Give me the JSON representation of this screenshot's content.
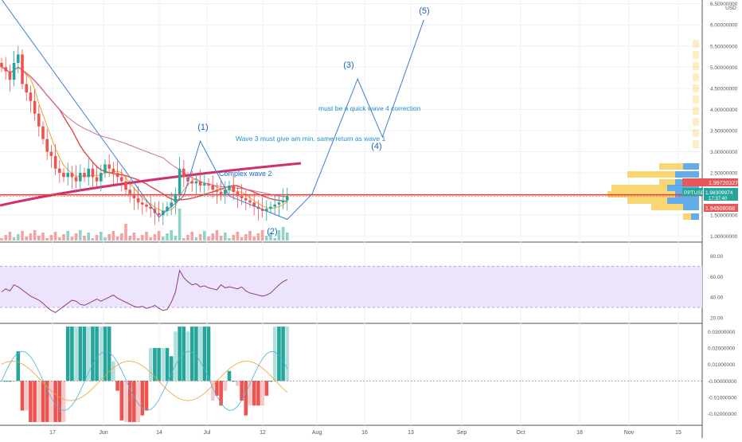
{
  "chart_data": {
    "type": "candlestick",
    "instrument": "PPTUSD",
    "currency": "USD",
    "price_axis": {
      "ticks": [
        "6.50000000",
        "6.00000000",
        "5.50000000",
        "5.00000000",
        "4.50000000",
        "4.00000000",
        "3.50000000",
        "3.00000000",
        "2.50000000",
        "2.00000000",
        "1.50000000",
        "1.00000000"
      ],
      "range": [
        0.9,
        6.55
      ]
    },
    "time_axis": {
      "ticks": [
        "17",
        "Jun",
        "14",
        "Jul",
        "12",
        "Aug",
        "16",
        "13",
        "Sep",
        "Oct",
        "18",
        "Nov",
        "15"
      ]
    },
    "price_labels": {
      "upper": "1.99720327",
      "current": "1.98309974",
      "countdown": "17:37:40",
      "lower": "1.94508068"
    },
    "annotations": {
      "wave_1": "(1)",
      "wave_2": "(2)",
      "wave_3": "(3)",
      "wave_4": "(4)",
      "wave_5": "(5)",
      "complex_wave_2": "Complex wave 2",
      "wave_3_note": "Wave 3 must give am min. same return as wave 1",
      "wave_4_note": "must be a quick wave 4 correction"
    },
    "projection_path": [
      {
        "x": 0,
        "y": 6.6
      },
      {
        "x": 38,
        "y": 1.45
      },
      {
        "x": 44,
        "y": 1.95
      },
      {
        "x": 48,
        "y": 3.25
      },
      {
        "x": 55,
        "y": 1.95
      },
      {
        "x": 69,
        "y": 1.4
      },
      {
        "x": 75,
        "y": 2.0
      },
      {
        "x": 86,
        "y": 4.72
      },
      {
        "x": 92,
        "y": 3.35
      },
      {
        "x": 102,
        "y": 6.12
      }
    ],
    "candles_close": [
      5.0,
      4.9,
      4.7,
      5.1,
      5.3,
      4.6,
      4.4,
      4.2,
      3.9,
      3.6,
      3.3,
      3.0,
      2.9,
      2.6,
      2.5,
      2.4,
      2.5,
      2.4,
      2.3,
      2.5,
      2.4,
      2.6,
      2.4,
      2.3,
      2.5,
      2.7,
      2.6,
      2.5,
      2.4,
      2.3,
      2.1,
      2.0,
      1.9,
      1.8,
      1.75,
      1.7,
      1.65,
      1.55,
      1.5,
      1.6,
      1.7,
      1.8,
      2.0,
      2.6,
      2.4,
      2.3,
      2.25,
      2.3,
      2.2,
      2.25,
      2.2,
      2.1,
      2.05,
      2.0,
      2.1,
      2.2,
      2.05,
      1.95,
      1.9,
      1.85,
      1.8,
      1.7,
      1.65,
      1.6,
      1.65,
      1.7,
      1.75,
      1.8,
      1.85,
      1.95
    ],
    "rsi": {
      "ticks": [
        "80.00",
        "60.00",
        "40.00",
        "20.00"
      ],
      "range": [
        16,
        92
      ],
      "band": [
        30,
        70
      ],
      "values": [
        45,
        48,
        46,
        52,
        50,
        47,
        44,
        41,
        39,
        37,
        34,
        30,
        27,
        25,
        28,
        31,
        34,
        37,
        36,
        33,
        32,
        34,
        36,
        38,
        36,
        38,
        40,
        42,
        39,
        37,
        35,
        33,
        31,
        30,
        31,
        29,
        30,
        32,
        29,
        27,
        28,
        35,
        45,
        66,
        59,
        55,
        52,
        53,
        50,
        51,
        49,
        48,
        47,
        52,
        49,
        50,
        49,
        48,
        50,
        46,
        44,
        43,
        42,
        41,
        42,
        44,
        48,
        52,
        55,
        57
      ]
    },
    "histogram": {
      "ticks": [
        "0.03000000",
        "0.02000000",
        "0.01000000",
        "-0.00000000",
        "-0.01000000",
        "-0.02000000"
      ],
      "range": [
        -0.026,
        0.034
      ]
    }
  }
}
